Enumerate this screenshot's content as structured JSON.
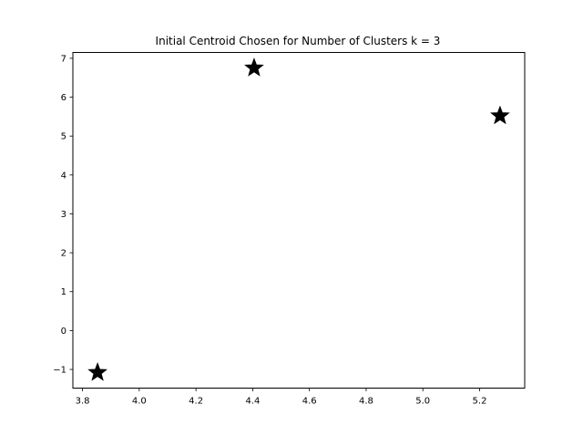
{
  "chart_data": {
    "type": "scatter",
    "title": "Initial Centroid Chosen for Number of Clusters k = 3",
    "xlabel": "",
    "ylabel": "",
    "xlim": [
      3.766,
      5.359
    ],
    "ylim": [
      -1.48,
      7.15
    ],
    "grid": false,
    "x_ticks": [
      3.8,
      4.0,
      4.2,
      4.4,
      4.6,
      4.8,
      5.0,
      5.2
    ],
    "x_tick_labels": [
      "3.8",
      "4.0",
      "4.2",
      "4.4",
      "4.6",
      "4.8",
      "5.0",
      "5.2"
    ],
    "y_ticks": [
      -1,
      0,
      1,
      2,
      3,
      4,
      5,
      6,
      7
    ],
    "y_tick_labels": [
      "−1",
      "0",
      "1",
      "2",
      "3",
      "4",
      "5",
      "6",
      "7"
    ],
    "series": [
      {
        "marker": "star",
        "color": "#000000",
        "points": [
          {
            "x": 3.853,
            "y": -1.08
          },
          {
            "x": 4.405,
            "y": 6.75
          },
          {
            "x": 5.272,
            "y": 5.52
          }
        ]
      }
    ]
  }
}
